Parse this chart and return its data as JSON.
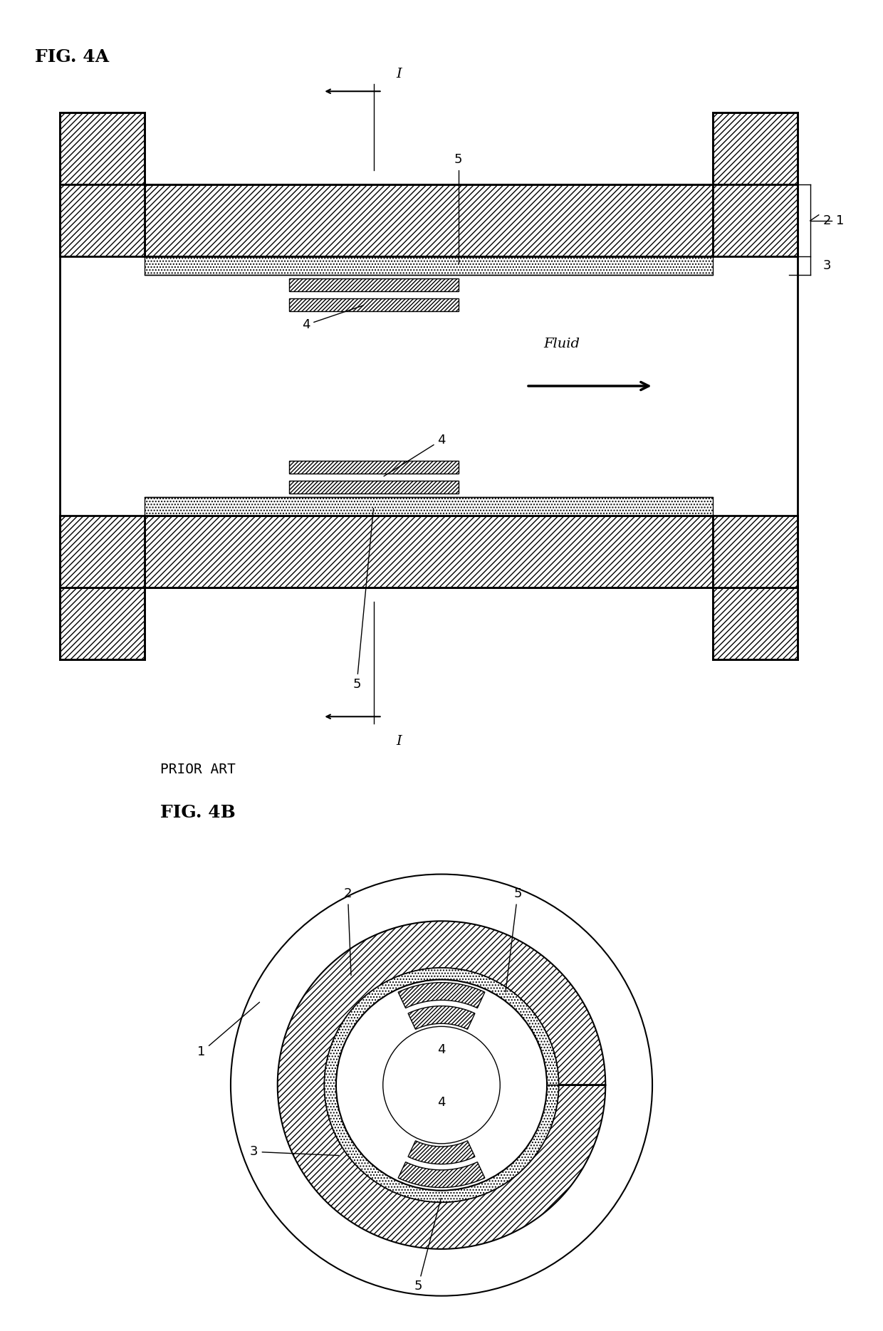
{
  "fig_title_4A": "FIG. 4A",
  "fig_title_4B": "FIG. 4B",
  "prior_art": "PRIOR ART",
  "fluid_label": "Fluid",
  "label_1": "1",
  "label_2": "2",
  "label_3": "3",
  "label_4": "4",
  "label_5": "5",
  "label_I": "I",
  "bg_color": "#ffffff"
}
